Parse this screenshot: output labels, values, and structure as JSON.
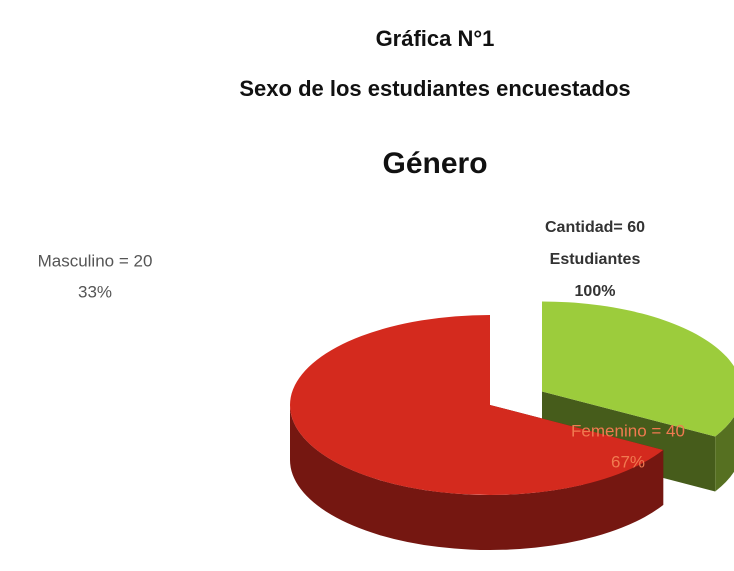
{
  "chart_data": {
    "type": "pie",
    "title": "Gráfica N°1",
    "subtitle": "Sexo de los estudiantes encuestados",
    "chart_title": "Género",
    "values": [
      20,
      40
    ],
    "value_labels": [
      "Masculino = 20",
      "Femenino = 40"
    ],
    "percent_labels": [
      "33%",
      "67%"
    ],
    "colors": [
      "#9ccc3c",
      "#d42a1e"
    ],
    "exploded": [
      true,
      false
    ],
    "3d": true,
    "annotation": [
      "Cantidad= 60",
      "Estudiantes",
      "100%"
    ]
  }
}
